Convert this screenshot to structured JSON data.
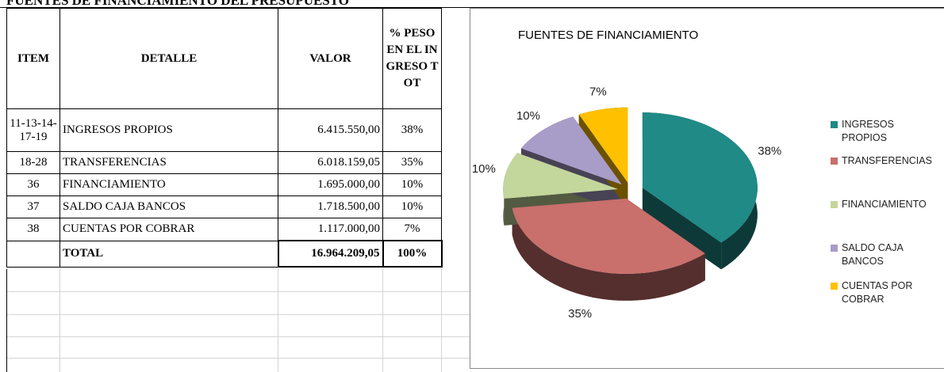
{
  "sheet_title": "FUENTES DE FINANCIAMIENTO DEL PRESUPUESTO",
  "table": {
    "headers": [
      "ITEM",
      "DETALLE",
      "VALOR",
      "% PESO EN EL INGRESO TOT"
    ],
    "rows": [
      [
        "11-13-14-17-19",
        "INGRESOS PROPIOS",
        "6.415.550,00",
        "38%"
      ],
      [
        "18-28",
        "TRANSFERENCIAS",
        "6.018.159,05",
        "35%"
      ],
      [
        "36",
        "FINANCIAMIENTO",
        "1.695.000,00",
        "10%"
      ],
      [
        "37",
        "SALDO CAJA BANCOS",
        "1.718.500,00",
        "10%"
      ],
      [
        "38",
        "CUENTAS POR COBRAR",
        "1.117.000,00",
        "7%"
      ]
    ],
    "total": {
      "label": "TOTAL",
      "value": "16.964.209,05",
      "percent": "100%"
    }
  },
  "chart_data": {
    "type": "pie",
    "title": "FUENTES DE FINANCIAMIENTO",
    "categories": [
      "INGRESOS PROPIOS",
      "TRANSFERENCIAS",
      "FINANCIAMIENTO",
      "SALDO CAJA BANCOS",
      "CUENTAS POR COBRAR"
    ],
    "values": [
      38,
      35,
      10,
      10,
      7
    ],
    "value_labels": [
      "38%",
      "35%",
      "10%",
      "10%",
      "7%"
    ],
    "colors": [
      "#1f8a86",
      "#c96f6c",
      "#c3d69b",
      "#a89cc8",
      "#ffc000"
    ],
    "legend": "right"
  }
}
